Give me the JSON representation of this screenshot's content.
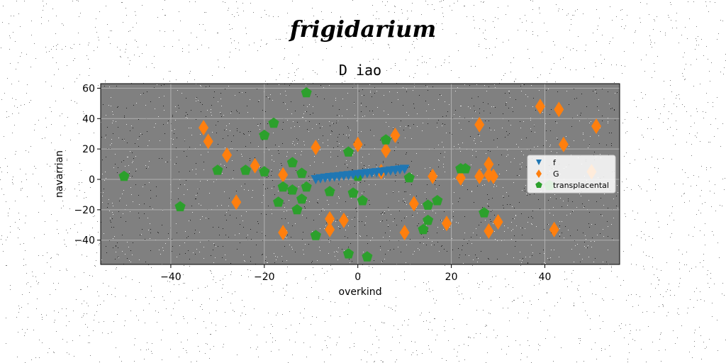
{
  "suptitle": "frigidarium",
  "chart_data": {
    "type": "scatter",
    "title": "D iao",
    "xlabel": "overkind",
    "ylabel": "navarrian",
    "xlim": [
      -55,
      56
    ],
    "ylim": [
      -56,
      63
    ],
    "xticks": [
      -40,
      -20,
      0,
      20,
      40
    ],
    "yticks": [
      -40,
      -20,
      0,
      20,
      40,
      60
    ],
    "grid": true,
    "legend_position": "center-right",
    "background": "#808080",
    "series": [
      {
        "name": "f",
        "marker": "triangle-down",
        "color": "#1f77b4",
        "points": [
          [
            -9,
            0
          ],
          [
            -8,
            0.6
          ],
          [
            -7,
            1
          ],
          [
            -6,
            1.4
          ],
          [
            -5,
            1.7
          ],
          [
            -4,
            2
          ],
          [
            -3,
            2.4
          ],
          [
            -2,
            2.7
          ],
          [
            -1,
            3
          ],
          [
            0,
            3.4
          ],
          [
            1,
            3.7
          ],
          [
            2,
            4
          ],
          [
            3,
            4.3
          ],
          [
            4,
            4.6
          ],
          [
            5,
            5
          ],
          [
            6,
            5.3
          ],
          [
            7,
            5.7
          ],
          [
            8,
            6
          ],
          [
            9,
            6.4
          ],
          [
            10,
            6.8
          ]
        ]
      },
      {
        "name": "G",
        "marker": "diamond",
        "color": "#ff7f0e",
        "points": [
          [
            -33,
            34
          ],
          [
            -32,
            25
          ],
          [
            -28,
            16
          ],
          [
            -26,
            -15
          ],
          [
            -22,
            9
          ],
          [
            -16,
            -35
          ],
          [
            -16,
            3
          ],
          [
            -9,
            21
          ],
          [
            -6,
            -26
          ],
          [
            -6,
            -33
          ],
          [
            -3,
            -27
          ],
          [
            0,
            23
          ],
          [
            5,
            5
          ],
          [
            6,
            19
          ],
          [
            8,
            29
          ],
          [
            10,
            -35
          ],
          [
            12,
            -16
          ],
          [
            16,
            2
          ],
          [
            19,
            -29
          ],
          [
            22,
            1
          ],
          [
            26,
            36
          ],
          [
            26,
            2
          ],
          [
            28,
            10
          ],
          [
            28,
            3
          ],
          [
            28,
            -34
          ],
          [
            29,
            2
          ],
          [
            30,
            -28
          ],
          [
            39,
            48
          ],
          [
            42,
            -33
          ],
          [
            43,
            46
          ],
          [
            44,
            23
          ],
          [
            50,
            5
          ],
          [
            51,
            35
          ]
        ]
      },
      {
        "name": "transplacental",
        "marker": "pentagon",
        "color": "#2ca02c",
        "points": [
          [
            -50,
            2
          ],
          [
            -38,
            -18
          ],
          [
            -30,
            6
          ],
          [
            -24,
            6
          ],
          [
            -20,
            29
          ],
          [
            -20,
            5
          ],
          [
            -18,
            37
          ],
          [
            -17,
            -15
          ],
          [
            -16,
            -5
          ],
          [
            -14,
            -7
          ],
          [
            -14,
            11
          ],
          [
            -13,
            -20
          ],
          [
            -12,
            4
          ],
          [
            -12,
            -13
          ],
          [
            -11,
            -5
          ],
          [
            -11,
            57
          ],
          [
            -9,
            -37
          ],
          [
            -6,
            -8
          ],
          [
            -2,
            18
          ],
          [
            -2,
            -49
          ],
          [
            -1,
            -9
          ],
          [
            0,
            2
          ],
          [
            1,
            -14
          ],
          [
            2,
            -51
          ],
          [
            6,
            26
          ],
          [
            11,
            1
          ],
          [
            14,
            -33
          ],
          [
            15,
            -17
          ],
          [
            15,
            -27
          ],
          [
            17,
            -14
          ],
          [
            22,
            7
          ],
          [
            23,
            7
          ],
          [
            27,
            -22
          ],
          [
            41,
            -4
          ]
        ]
      }
    ]
  }
}
